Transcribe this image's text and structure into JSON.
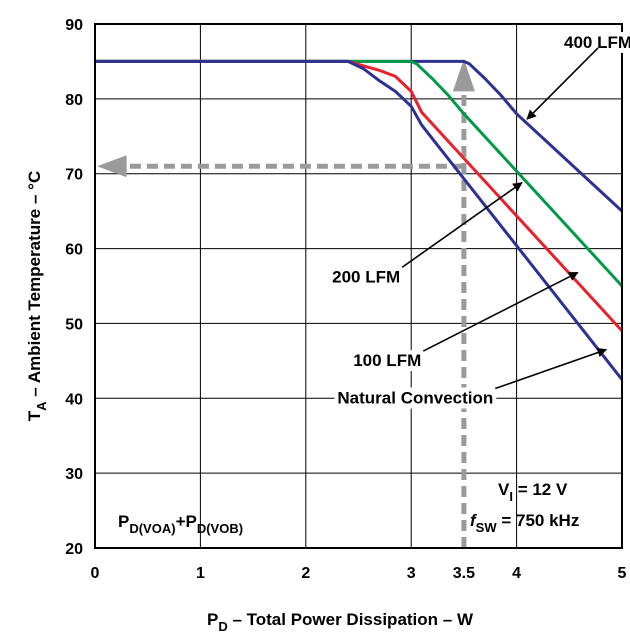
{
  "chart_data": {
    "type": "line",
    "xlabel": {
      "main": "P",
      "sub": "D",
      "rest": " – Total Power Dissipation – W"
    },
    "ylabel": {
      "main": "T",
      "sub": "A",
      "rest": " – Ambient Temperature – °C"
    },
    "xlim": [
      0,
      5
    ],
    "ylim": [
      20,
      90
    ],
    "x_ticks": [
      0,
      1,
      2,
      3,
      3.5,
      4,
      5
    ],
    "x_tick_labels": [
      "0",
      "1",
      "2",
      "3",
      "3.5",
      "4",
      "5"
    ],
    "y_ticks": [
      20,
      30,
      40,
      50,
      60,
      70,
      80,
      90
    ],
    "y_tick_labels": [
      "20",
      "30",
      "40",
      "50",
      "60",
      "70",
      "80",
      "90"
    ],
    "grid": true,
    "series": [
      {
        "name": "400 LFM",
        "color": "#2e3192",
        "points": [
          [
            0,
            85
          ],
          [
            2.4,
            85
          ],
          [
            3.5,
            85
          ],
          [
            3.55,
            84.7
          ],
          [
            3.7,
            82.7
          ],
          [
            3.85,
            80.5
          ],
          [
            4.0,
            78
          ],
          [
            5.0,
            65
          ]
        ]
      },
      {
        "name": "200 LFM",
        "color": "#009a46",
        "points": [
          [
            0,
            85
          ],
          [
            2.4,
            85
          ],
          [
            3.0,
            85
          ],
          [
            3.05,
            84.7
          ],
          [
            3.2,
            82.7
          ],
          [
            3.35,
            80.5
          ],
          [
            3.5,
            78
          ],
          [
            5.0,
            55
          ]
        ]
      },
      {
        "name": "100 LFM",
        "color": "#e8212a",
        "points": [
          [
            0,
            85
          ],
          [
            2.4,
            85
          ],
          [
            2.5,
            84.6
          ],
          [
            2.7,
            83.8
          ],
          [
            2.85,
            83
          ],
          [
            3.0,
            81
          ],
          [
            3.1,
            78.2
          ],
          [
            5.0,
            49
          ]
        ]
      },
      {
        "name": "Natural Convection",
        "color": "#2e3192",
        "points": [
          [
            0,
            85
          ],
          [
            2.4,
            85
          ],
          [
            2.55,
            84
          ],
          [
            2.7,
            82.4
          ],
          [
            2.85,
            81
          ],
          [
            3.0,
            79
          ],
          [
            3.1,
            76.5
          ],
          [
            5.0,
            42.5
          ]
        ]
      }
    ],
    "annotations": [
      {
        "text": "400 LFM",
        "x": 4.45,
        "y": 86.8,
        "arrow_to": [
          4.1,
          77.3
        ]
      },
      {
        "text": "200 LFM",
        "x": 2.25,
        "y": 55.5,
        "arrow_to": [
          4.05,
          68.8
        ]
      },
      {
        "text": "100 LFM",
        "x": 2.45,
        "y": 44.3,
        "arrow_to": [
          4.58,
          56.8
        ]
      },
      {
        "text": "Natural Convection",
        "x": 2.3,
        "y": 39.3,
        "arrow_to": [
          4.85,
          46.5
        ]
      }
    ],
    "marker_x": 3.5,
    "marker_y": 71,
    "conditions": {
      "vi": {
        "main": "V",
        "sub": "I",
        "rest": " = 12 V"
      },
      "fsw": {
        "main": "f",
        "sub": "SW",
        "rest": " = 750 kHz"
      }
    },
    "power_note": {
      "p1": "P",
      "s1": "D(VOA)",
      "plus": "+",
      "p2": "P",
      "s2": "D(VOB)"
    }
  }
}
